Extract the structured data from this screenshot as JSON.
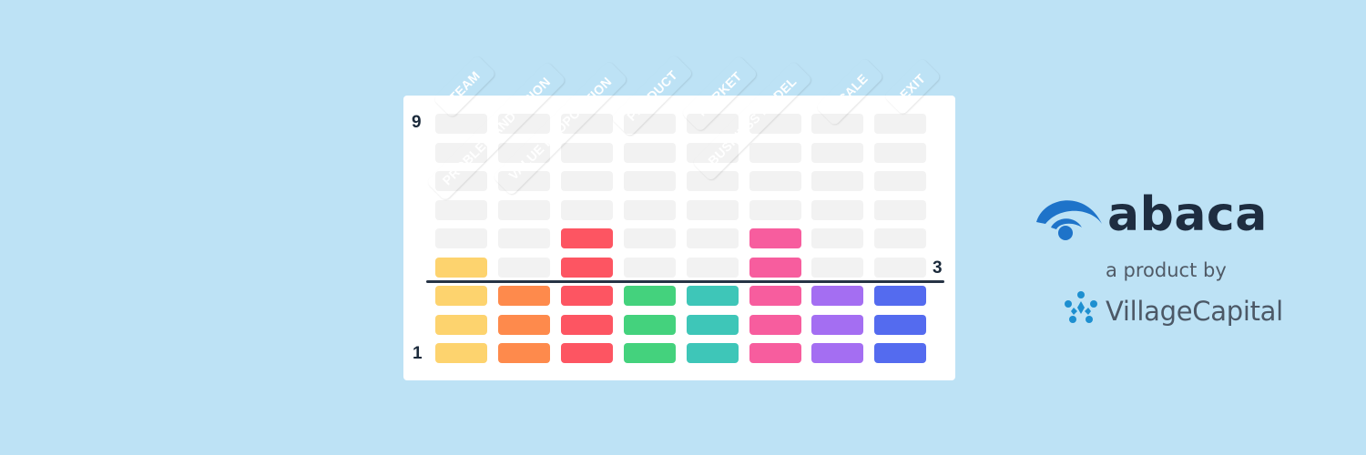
{
  "matrix": {
    "top_level": "9",
    "bottom_level": "1",
    "current_level": "3",
    "empty_color": "#f2f2f2",
    "categories": [
      {
        "name": "TEAM",
        "color": "#fdd36e",
        "level": 4
      },
      {
        "name": "PROBLEM AND VISION",
        "color": "#fe8a4c",
        "level": 3
      },
      {
        "name": "VALUE PROPOSITION",
        "color": "#fd5562",
        "level": 5
      },
      {
        "name": "PRODUCT",
        "color": "#44d27d",
        "level": 3
      },
      {
        "name": "MARKET",
        "color": "#3ec6b8",
        "level": 3
      },
      {
        "name": "BUSINESS MODEL",
        "color": "#f75d9e",
        "level": 5
      },
      {
        "name": "SCALE",
        "color": "#a46ef2",
        "level": 3
      },
      {
        "name": "EXIT",
        "color": "#546bef",
        "level": 3
      }
    ]
  },
  "brand": {
    "name": "abaca",
    "tagline": "a product by",
    "partner": "VillageCapital",
    "icon": "abaca-logo-icon",
    "partner_icon": "village-capital-logo-icon",
    "primary_color": "#1e73c9"
  }
}
